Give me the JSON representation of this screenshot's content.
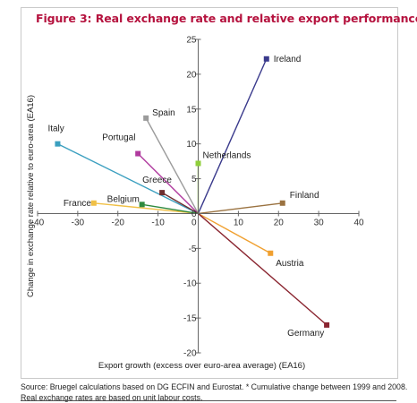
{
  "title": "Figure 3: Real exchange rate and relative export performance*",
  "source": "Source: Bruegel calculations based on DG ECFIN and Eurostat. * Cumulative change between 1999 and 2008. Real exchange rates are based on unit labour costs.",
  "chart_data": {
    "type": "scatter",
    "title": "Figure 3: Real exchange rate and relative export performance*",
    "xlabel": "Export growth (excess over euro-area average) (EA16)",
    "ylabel": "Change in exchange rate relative to euro-area (EA16)",
    "xlim": [
      -40,
      40
    ],
    "ylim": [
      -20,
      25
    ],
    "xticks": [
      -40,
      -30,
      -20,
      -10,
      0,
      10,
      20,
      30,
      40
    ],
    "yticks": [
      25,
      20,
      15,
      10,
      5,
      0,
      -5,
      -10,
      -15,
      -20
    ],
    "grid": false,
    "rays_from_origin": true,
    "points": [
      {
        "label": "Ireland",
        "x": 17,
        "y": 22.2,
        "color": "#3a3a8c"
      },
      {
        "label": "Spain",
        "x": -13,
        "y": 13.7,
        "color": "#9b9b9b"
      },
      {
        "label": "Italy",
        "x": -35,
        "y": 10,
        "color": "#3a9fbf"
      },
      {
        "label": "Portugal",
        "x": -15,
        "y": 8.6,
        "color": "#b03a9e"
      },
      {
        "label": "Netherlands",
        "x": 0,
        "y": 7.2,
        "color": "#8fcf3a"
      },
      {
        "label": "Greece",
        "x": -9,
        "y": 3,
        "color": "#6e2e2e"
      },
      {
        "label": "France",
        "x": -26,
        "y": 1.5,
        "color": "#f0c046"
      },
      {
        "label": "Belgium",
        "x": -14,
        "y": 1.3,
        "color": "#2e8a3e"
      },
      {
        "label": "Finland",
        "x": 21,
        "y": 1.5,
        "color": "#9a7240"
      },
      {
        "label": "Austria",
        "x": 18,
        "y": -5.7,
        "color": "#f0a030"
      },
      {
        "label": "Germany",
        "x": 32,
        "y": -16,
        "color": "#8a2530"
      }
    ]
  }
}
